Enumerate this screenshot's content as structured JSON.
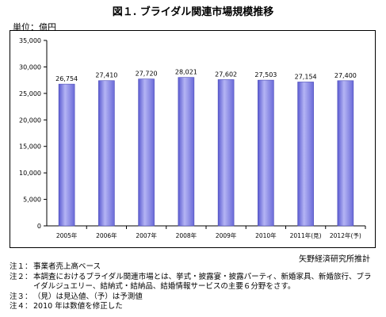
{
  "title": "図１. ブライダル関連市場規模推移",
  "unit_label": "単位：億円",
  "source": "矢野経済研究所推計",
  "notes": [
    {
      "label": "注１：",
      "text": "事業者売上高ベース"
    },
    {
      "label": "注２：",
      "text": "本調査におけるブライダル関連市場とは、挙式・披露宴・披露パーティ、新婚家具、新婚旅行、ブライダルジュエリー、結納式・結納品、結婚情報サービスの主要６分野をさす。"
    },
    {
      "label": "注３：",
      "text": "（見）は見込値、（予）は予測値"
    },
    {
      "label": "注４：",
      "text": "2010 年は数値を修正した"
    }
  ],
  "chart_data": {
    "type": "bar",
    "categories": [
      "2005年",
      "2006年",
      "2007年",
      "2008年",
      "2009年",
      "2010年",
      "2011年(見)",
      "2012年(予)"
    ],
    "values": [
      26754,
      27410,
      27720,
      28021,
      27602,
      27503,
      27154,
      27400
    ],
    "data_labels": [
      "26,754",
      "27,410",
      "27,720",
      "28,021",
      "27,602",
      "27,503",
      "27,154",
      "27,400"
    ],
    "yticks": [
      0,
      5000,
      10000,
      15000,
      20000,
      25000,
      30000,
      35000
    ],
    "ytick_labels": [
      "0",
      "5,000",
      "10,000",
      "15,000",
      "20,000",
      "25,000",
      "30,000",
      "35,000"
    ],
    "ylim": [
      0,
      35000
    ],
    "grid": false,
    "bar_color": "#8f8fe6"
  }
}
